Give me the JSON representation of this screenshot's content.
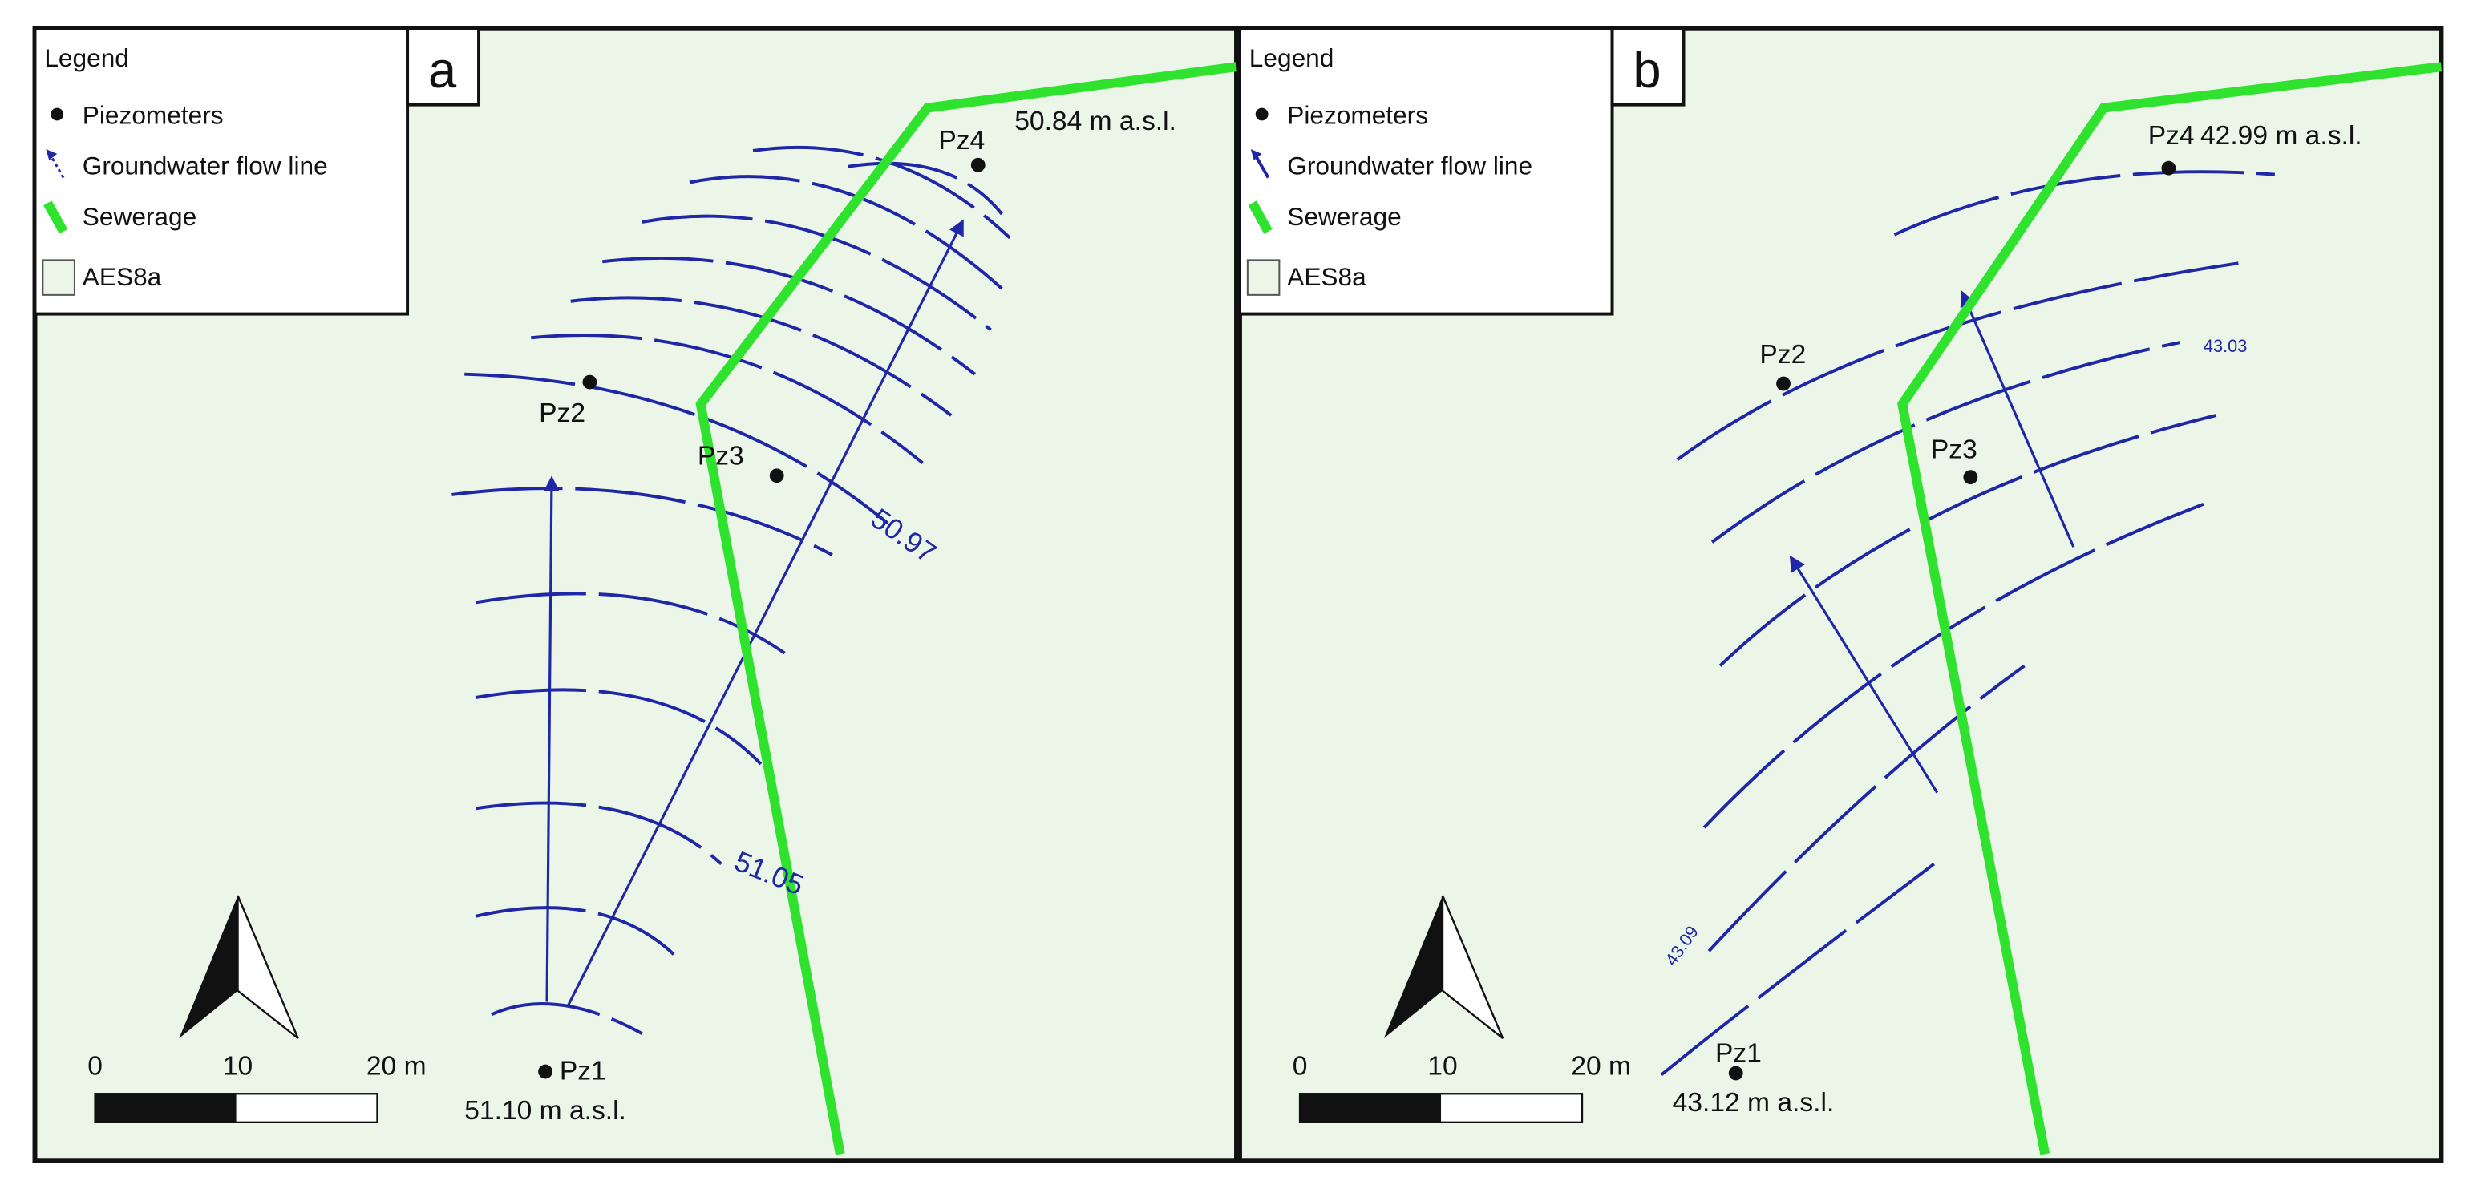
{
  "panels": [
    {
      "label": "a",
      "legend": {
        "title": "Legend",
        "items": [
          "Piezometers",
          "Groundwater flow line",
          "Sewerage",
          "AES8a"
        ]
      },
      "piezometers": [
        {
          "name": "Pz1",
          "elevation": "51.10 m a.s.l."
        },
        {
          "name": "Pz2"
        },
        {
          "name": "Pz3"
        },
        {
          "name": "Pz4",
          "elevation": "50.84 m a.s.l."
        }
      ],
      "contour_labels": [
        "50.97",
        "51.05"
      ],
      "scale_labels": [
        "0",
        "10",
        "20 m"
      ]
    },
    {
      "label": "b",
      "legend": {
        "title": "Legend",
        "items": [
          "Piezometers",
          "Groundwater flow line",
          "Sewerage",
          "AES8a"
        ]
      },
      "piezometers": [
        {
          "name": "Pz1",
          "elevation": "43.12 m a.s.l."
        },
        {
          "name": "Pz2"
        },
        {
          "name": "Pz3"
        },
        {
          "name": "Pz4",
          "elevation": "42.99 m a.s.l."
        }
      ],
      "contour_labels": [
        "43.03",
        "43.09"
      ],
      "scale_labels": [
        "0",
        "10",
        "20 m"
      ]
    }
  ]
}
